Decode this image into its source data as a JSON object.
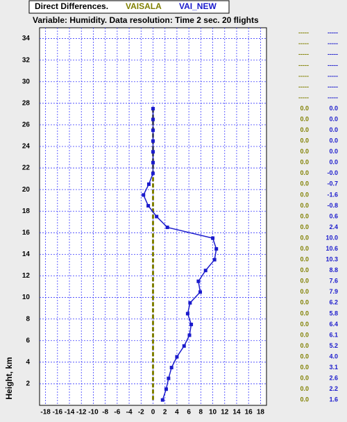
{
  "chart_data": {
    "type": "line",
    "title": "Direct Differences.",
    "subtitle": "Variable: Humidity. Data resolution: Time 2 sec. 20 flights",
    "y_label": "Height, km",
    "y": [
      0.5,
      1.5,
      2.5,
      3.5,
      4.5,
      5.5,
      6.5,
      7.5,
      8.5,
      9.5,
      10.5,
      11.5,
      12.5,
      13.5,
      14.5,
      15.5,
      16.5,
      17.5,
      18.5,
      19.5,
      20.5,
      21.5,
      22.5,
      23.5,
      24.5,
      25.5,
      26.5,
      27.5,
      28.5,
      29.5,
      30.5,
      31.5,
      32.5,
      33.5,
      34.5
    ],
    "series": [
      {
        "name": "VAISALA",
        "color": "#808000",
        "style": "dashed",
        "marker": "none",
        "values": [
          0,
          0,
          0,
          0,
          0,
          0,
          0,
          0,
          0,
          0,
          0,
          0,
          0,
          0,
          0,
          0,
          0,
          0,
          0,
          0,
          0,
          0,
          0,
          0,
          0,
          0,
          0,
          0,
          null,
          null,
          null,
          null,
          null,
          null,
          null
        ],
        "value_labels": [
          "0.0",
          "0.0",
          "0.0",
          "0.0",
          "0.0",
          "0.0",
          "0.0",
          "0.0",
          "0.0",
          "0.0",
          "0.0",
          "0.0",
          "0.0",
          "0.0",
          "0.0",
          "0.0",
          "0.0",
          "0.0",
          "0.0",
          "0.0",
          "0.0",
          "0.0",
          "0.0",
          "0.0",
          "0.0",
          "0.0",
          "0.0",
          "0.0",
          "-----",
          "-----",
          "-----",
          "-----",
          "-----",
          "-----",
          "-----"
        ]
      },
      {
        "name": "VAI_NEW",
        "color": "#1a1acc",
        "style": "solid",
        "marker": "square",
        "values": [
          1.6,
          2.2,
          2.6,
          3.1,
          4.0,
          5.2,
          6.1,
          6.4,
          5.8,
          6.2,
          7.9,
          7.6,
          8.8,
          10.3,
          10.6,
          10.0,
          2.4,
          0.6,
          -0.8,
          -1.6,
          -0.7,
          -0.01,
          0,
          0,
          0,
          0,
          0,
          0,
          null,
          null,
          null,
          null,
          null,
          null,
          null
        ],
        "value_labels": [
          "1.6",
          "2.2",
          "2.6",
          "3.1",
          "4.0",
          "5.2",
          "6.1",
          "6.4",
          "5.8",
          "6.2",
          "7.9",
          "7.6",
          "8.8",
          "10.3",
          "10.6",
          "10.0",
          "2.4",
          "0.6",
          "-0.8",
          "-1.6",
          "-0.7",
          "-0.0",
          "0.0",
          "0.0",
          "0.0",
          "0.0",
          "0.0",
          "0.0",
          "-----",
          "-----",
          "-----",
          "-----",
          "-----",
          "-----",
          "-----"
        ]
      }
    ],
    "xlim": [
      -19,
      19
    ],
    "xticks": [
      -18,
      -16,
      -14,
      -12,
      -10,
      -8,
      -6,
      -4,
      -2,
      0,
      2,
      4,
      6,
      8,
      10,
      12,
      14,
      16,
      18
    ],
    "ylim": [
      0,
      35
    ],
    "yticks": [
      2,
      4,
      6,
      8,
      10,
      12,
      14,
      16,
      18,
      20,
      22,
      24,
      26,
      28,
      30,
      32,
      34
    ],
    "grid": true
  }
}
